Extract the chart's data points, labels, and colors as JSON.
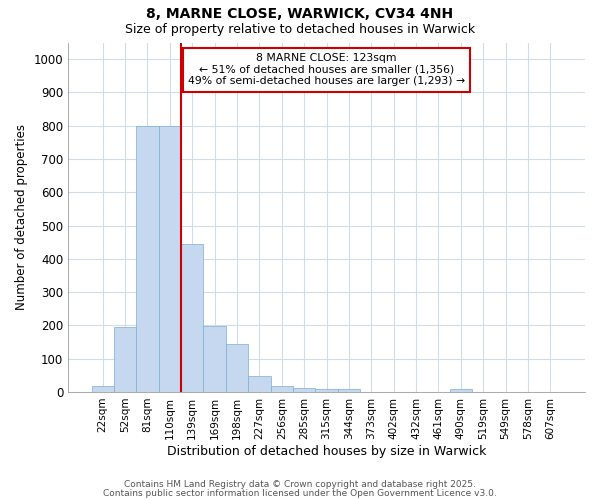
{
  "title1": "8, MARNE CLOSE, WARWICK, CV34 4NH",
  "title2": "Size of property relative to detached houses in Warwick",
  "xlabel": "Distribution of detached houses by size in Warwick",
  "ylabel": "Number of detached properties",
  "bar_labels": [
    "22sqm",
    "52sqm",
    "81sqm",
    "110sqm",
    "139sqm",
    "169sqm",
    "198sqm",
    "227sqm",
    "256sqm",
    "285sqm",
    "315sqm",
    "344sqm",
    "373sqm",
    "402sqm",
    "432sqm",
    "461sqm",
    "490sqm",
    "519sqm",
    "549sqm",
    "578sqm",
    "607sqm"
  ],
  "bar_values": [
    18,
    195,
    800,
    800,
    445,
    198,
    143,
    48,
    18,
    12,
    10,
    8,
    0,
    0,
    0,
    0,
    8,
    0,
    0,
    0,
    0
  ],
  "bar_color": "#c5d8f0",
  "bar_edgecolor": "#7aafd4",
  "ylim": [
    0,
    1050
  ],
  "yticks": [
    0,
    100,
    200,
    300,
    400,
    500,
    600,
    700,
    800,
    900,
    1000
  ],
  "vline_x": 3.5,
  "vline_color": "#cc0000",
  "annotation_text": "8 MARNE CLOSE: 123sqm\n← 51% of detached houses are smaller (1,356)\n49% of semi-detached houses are larger (1,293) →",
  "annotation_box_color": "#ffffff",
  "annotation_box_edgecolor": "#cc0000",
  "footer1": "Contains HM Land Registry data © Crown copyright and database right 2025.",
  "footer2": "Contains public sector information licensed under the Open Government Licence v3.0.",
  "background_color": "#ffffff",
  "grid_color": "#d0dde8"
}
